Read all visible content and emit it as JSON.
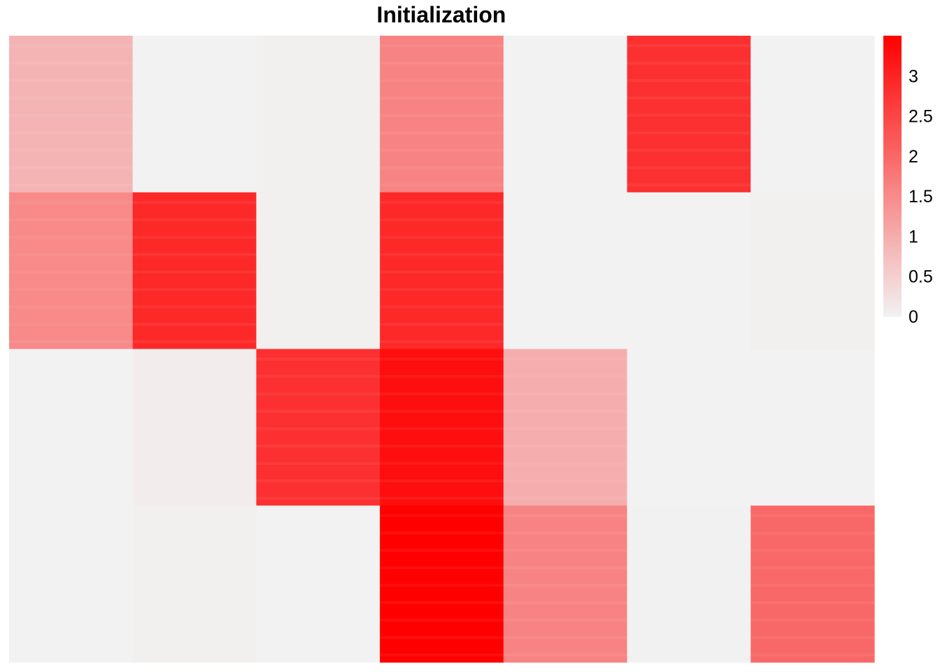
{
  "chart_data": {
    "type": "heatmap",
    "title": "Initialization",
    "row_blocks": 4,
    "col_blocks": 7,
    "values": [
      [
        0.9,
        0.0,
        0.05,
        1.6,
        0.0,
        2.8,
        0.0
      ],
      [
        1.5,
        2.9,
        0.05,
        2.9,
        0.0,
        0.0,
        0.05
      ],
      [
        0.0,
        0.08,
        2.8,
        3.3,
        1.0,
        0.0,
        0.0
      ],
      [
        0.0,
        0.05,
        0.0,
        3.5,
        1.6,
        0.02,
        2.0
      ]
    ],
    "color_scale": {
      "min": 0,
      "max": 3.5,
      "low_color": "#f2f2f2",
      "high_color": "#ff0000"
    },
    "legend": {
      "ticks": [
        0,
        0.5,
        1,
        1.5,
        2,
        2.5,
        3
      ],
      "tick_labels": [
        "0",
        "0.5",
        "1",
        "1.5",
        "2",
        "2.5",
        "3"
      ],
      "placement": "right-top"
    },
    "xlabel": "",
    "ylabel": ""
  }
}
